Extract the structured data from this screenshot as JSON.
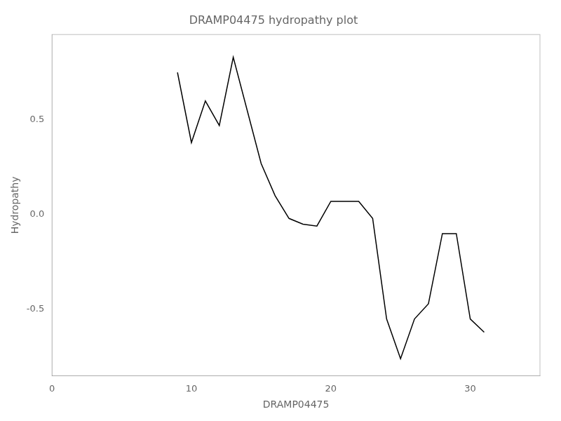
{
  "chart_data": {
    "type": "line",
    "title": "DRAMP04475 hydropathy plot",
    "xlabel": "DRAMP04475",
    "ylabel": "Hydropathy",
    "x": [
      9,
      10,
      11,
      12,
      13,
      14,
      15,
      16,
      17,
      18,
      19,
      20,
      21,
      22,
      23,
      24,
      25,
      26,
      27,
      28,
      29,
      30,
      31
    ],
    "values": [
      0.75,
      0.38,
      0.6,
      0.47,
      0.83,
      0.55,
      0.27,
      0.1,
      -0.02,
      -0.05,
      -0.06,
      0.07,
      0.07,
      0.07,
      -0.02,
      -0.55,
      -0.76,
      -0.55,
      -0.47,
      -0.1,
      -0.1,
      -0.55,
      -0.62
    ],
    "color": "#000000",
    "xlim": [
      0,
      35
    ],
    "ylim": [
      -0.85,
      0.95
    ],
    "xticks": [
      0,
      10,
      20,
      30
    ],
    "yticks": [
      -0.5,
      {
        "value": 0,
        "label": "0.0"
      },
      0.5
    ],
    "grid": false
  }
}
